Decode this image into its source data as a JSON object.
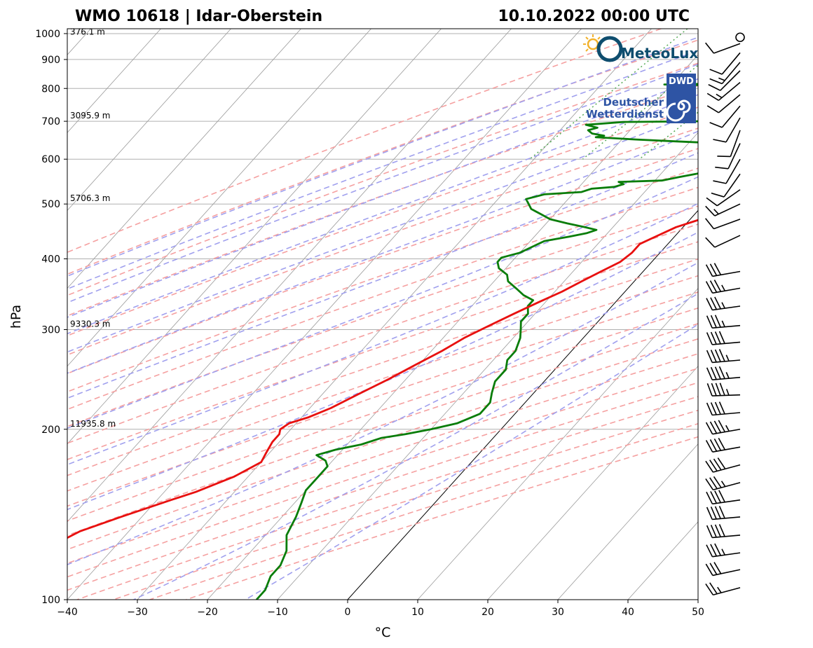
{
  "title_left": "WMO 10618 | Idar-Oberstein",
  "title_right": "10.10.2022 00:00 UTC",
  "logos": {
    "meteolux": "MeteoLux",
    "dwd_badge": "DWD",
    "dwd_line1": "Deutscher",
    "dwd_line2": "Wetterdienst"
  },
  "colors": {
    "temperature": "#e8100f",
    "dewpoint": "#0a7d0a",
    "dry_adiabat": "#f5a0a0",
    "moist_adiabat": "#a0a0ee",
    "mixing_ratio": "#55aa55"
  },
  "chart_data": {
    "type": "skew-T log-P",
    "xlabel": "°C",
    "ylabel": "hPa",
    "xlim": [
      -40,
      50
    ],
    "ylim": [
      1020,
      100
    ],
    "x_ticks": [
      -40,
      -30,
      -20,
      -10,
      0,
      10,
      20,
      30,
      40,
      50
    ],
    "x_tick_labels": [
      "−40",
      "−30",
      "−20",
      "−10",
      "0",
      "10",
      "20",
      "30",
      "40",
      "50"
    ],
    "y_ticks": [
      1000,
      900,
      800,
      700,
      600,
      500,
      400,
      300,
      200,
      100
    ],
    "y_tick_labels": [
      "1000",
      "900",
      "800",
      "700",
      "600",
      "500",
      "400",
      "300",
      "200",
      "100"
    ],
    "height_labels": [
      {
        "p": 985,
        "label": "376.1 m"
      },
      {
        "p": 700,
        "label": "3095.9 m"
      },
      {
        "p": 500,
        "label": "5706.3 m"
      },
      {
        "p": 300,
        "label": "9330.3 m"
      },
      {
        "p": 200,
        "label": "11935.8 m"
      }
    ],
    "temperature_profile": [
      [
        970,
        6
      ],
      [
        965,
        10
      ],
      [
        958,
        13
      ],
      [
        950,
        14.5
      ],
      [
        935,
        15
      ],
      [
        920,
        15.5
      ],
      [
        900,
        15
      ],
      [
        880,
        14.5
      ],
      [
        860,
        15.5
      ],
      [
        845,
        16
      ],
      [
        830,
        17.5
      ],
      [
        810,
        18
      ],
      [
        800,
        17
      ],
      [
        780,
        15.5
      ],
      [
        760,
        15
      ],
      [
        740,
        14
      ],
      [
        720,
        13.5
      ],
      [
        700,
        13
      ],
      [
        685,
        12.5
      ],
      [
        670,
        11.5
      ],
      [
        650,
        10
      ],
      [
        630,
        9.5
      ],
      [
        610,
        8.5
      ],
      [
        590,
        8
      ],
      [
        570,
        7.5
      ],
      [
        550,
        6.5
      ],
      [
        530,
        6
      ],
      [
        510,
        5.5
      ],
      [
        500,
        4.5
      ],
      [
        485,
        3
      ],
      [
        470,
        1.5
      ],
      [
        455,
        -1
      ],
      [
        440,
        -2.5
      ],
      [
        425,
        -4
      ],
      [
        410,
        -4
      ],
      [
        395,
        -4.5
      ],
      [
        380,
        -6
      ],
      [
        365,
        -7.5
      ],
      [
        350,
        -9
      ],
      [
        335,
        -11
      ],
      [
        320,
        -13
      ],
      [
        305,
        -15
      ],
      [
        290,
        -17
      ],
      [
        275,
        -18.5
      ],
      [
        260,
        -20.5
      ],
      [
        245,
        -22.5
      ],
      [
        230,
        -25
      ],
      [
        218,
        -27
      ],
      [
        210,
        -29
      ],
      [
        205,
        -31
      ],
      [
        200,
        -31.5
      ],
      [
        196,
        -31
      ],
      [
        190,
        -31
      ],
      [
        182,
        -30.5
      ],
      [
        175,
        -30
      ],
      [
        165,
        -32
      ],
      [
        155,
        -35.5
      ],
      [
        150,
        -38
      ],
      [
        140,
        -43
      ],
      [
        132,
        -47
      ],
      [
        125,
        -49
      ],
      [
        118,
        -52
      ],
      [
        112,
        -55
      ],
      [
        106,
        -57
      ],
      [
        100,
        -58
      ]
    ],
    "dewpoint_profile": [
      [
        970,
        5
      ],
      [
        960,
        6.5
      ],
      [
        950,
        8
      ],
      [
        930,
        9.5
      ],
      [
        915,
        10
      ],
      [
        900,
        10.5
      ],
      [
        890,
        9
      ],
      [
        875,
        10
      ],
      [
        865,
        9
      ],
      [
        857,
        7
      ],
      [
        850,
        4
      ],
      [
        848,
        -7
      ],
      [
        846,
        -9
      ],
      [
        845,
        -14
      ],
      [
        835,
        -7
      ],
      [
        825,
        -13
      ],
      [
        818,
        -7
      ],
      [
        813,
        -21
      ],
      [
        808,
        -8
      ],
      [
        804,
        3
      ],
      [
        800,
        4.5
      ],
      [
        790,
        4
      ],
      [
        780,
        3
      ],
      [
        775,
        -5
      ],
      [
        770,
        -10
      ],
      [
        765,
        -3
      ],
      [
        760,
        2
      ],
      [
        753,
        4
      ],
      [
        745,
        6
      ],
      [
        735,
        5
      ],
      [
        725,
        3
      ],
      [
        710,
        -3
      ],
      [
        700,
        -11
      ],
      [
        698,
        -22
      ],
      [
        690,
        -27
      ],
      [
        682,
        -25
      ],
      [
        675,
        -26
      ],
      [
        666,
        -25
      ],
      [
        660,
        -23
      ],
      [
        656,
        -24
      ],
      [
        650,
        -18
      ],
      [
        645,
        -12
      ],
      [
        638,
        -3
      ],
      [
        632,
        5
      ],
      [
        628,
        5
      ],
      [
        620,
        5
      ],
      [
        612,
        3
      ],
      [
        605,
        1.5
      ],
      [
        595,
        0.5
      ],
      [
        585,
        -1
      ],
      [
        575,
        -3
      ],
      [
        565,
        -5
      ],
      [
        558,
        -7
      ],
      [
        550,
        -9
      ],
      [
        547,
        -15
      ],
      [
        542,
        -14
      ],
      [
        536,
        -15
      ],
      [
        532,
        -18
      ],
      [
        525,
        -19
      ],
      [
        520,
        -24
      ],
      [
        515,
        -25
      ],
      [
        510,
        -26
      ],
      [
        500,
        -25
      ],
      [
        490,
        -24
      ],
      [
        480,
        -22
      ],
      [
        470,
        -20
      ],
      [
        462,
        -17
      ],
      [
        455,
        -14
      ],
      [
        450,
        -12
      ],
      [
        444,
        -13
      ],
      [
        438,
        -15
      ],
      [
        430,
        -18
      ],
      [
        420,
        -19
      ],
      [
        410,
        -20
      ],
      [
        402,
        -22
      ],
      [
        395,
        -22
      ],
      [
        385,
        -21
      ],
      [
        375,
        -19
      ],
      [
        365,
        -18
      ],
      [
        355,
        -16
      ],
      [
        345,
        -14
      ],
      [
        338,
        -12
      ],
      [
        330,
        -12
      ],
      [
        320,
        -11
      ],
      [
        310,
        -11
      ],
      [
        300,
        -10
      ],
      [
        290,
        -9
      ],
      [
        275,
        -8
      ],
      [
        265,
        -8
      ],
      [
        255,
        -7
      ],
      [
        243,
        -7
      ],
      [
        232,
        -6
      ],
      [
        223,
        -5
      ],
      [
        213,
        -5
      ],
      [
        205,
        -7
      ],
      [
        200,
        -10
      ],
      [
        196,
        -13
      ],
      [
        193,
        -16
      ],
      [
        188,
        -18
      ],
      [
        184,
        -21
      ],
      [
        180,
        -23
      ],
      [
        176,
        -21
      ],
      [
        172,
        -20
      ],
      [
        165,
        -20
      ],
      [
        156,
        -20
      ],
      [
        148,
        -19
      ],
      [
        140,
        -18
      ],
      [
        130,
        -17
      ],
      [
        122,
        -15
      ],
      [
        115,
        -14
      ],
      [
        110,
        -14
      ],
      [
        104,
        -13
      ],
      [
        100,
        -13
      ]
    ],
    "wind_barbs": [
      {
        "p": 985,
        "dir": 0,
        "speed": 0
      },
      {
        "p": 960,
        "dir": 250,
        "speed": 10
      },
      {
        "p": 925,
        "dir": 220,
        "speed": 10
      },
      {
        "p": 890,
        "dir": 220,
        "speed": 15
      },
      {
        "p": 860,
        "dir": 225,
        "speed": 10
      },
      {
        "p": 820,
        "dir": 230,
        "speed": 15
      },
      {
        "p": 780,
        "dir": 230,
        "speed": 10
      },
      {
        "p": 745,
        "dir": 220,
        "speed": 10
      },
      {
        "p": 710,
        "dir": 210,
        "speed": 10
      },
      {
        "p": 675,
        "dir": 200,
        "speed": 10
      },
      {
        "p": 640,
        "dir": 205,
        "speed": 10
      },
      {
        "p": 600,
        "dir": 210,
        "speed": 10
      },
      {
        "p": 565,
        "dir": 215,
        "speed": 10
      },
      {
        "p": 530,
        "dir": 235,
        "speed": 10
      },
      {
        "p": 500,
        "dir": 245,
        "speed": 15
      },
      {
        "p": 470,
        "dir": 250,
        "speed": 10
      },
      {
        "p": 440,
        "dir": 245,
        "speed": 10
      },
      {
        "p": 380,
        "dir": 260,
        "speed": 30
      },
      {
        "p": 355,
        "dir": 260,
        "speed": 35
      },
      {
        "p": 330,
        "dir": 262,
        "speed": 35
      },
      {
        "p": 305,
        "dir": 265,
        "speed": 35
      },
      {
        "p": 285,
        "dir": 265,
        "speed": 40
      },
      {
        "p": 265,
        "dir": 265,
        "speed": 45
      },
      {
        "p": 247,
        "dir": 265,
        "speed": 45
      },
      {
        "p": 230,
        "dir": 268,
        "speed": 45
      },
      {
        "p": 214,
        "dir": 265,
        "speed": 40
      },
      {
        "p": 200,
        "dir": 260,
        "speed": 45
      },
      {
        "p": 186,
        "dir": 260,
        "speed": 40
      },
      {
        "p": 173,
        "dir": 255,
        "speed": 40
      },
      {
        "p": 161,
        "dir": 255,
        "speed": 35
      },
      {
        "p": 150,
        "dir": 262,
        "speed": 40
      },
      {
        "p": 140,
        "dir": 265,
        "speed": 40
      },
      {
        "p": 130,
        "dir": 265,
        "speed": 40
      },
      {
        "p": 121,
        "dir": 262,
        "speed": 35
      },
      {
        "p": 113,
        "dir": 258,
        "speed": 30
      },
      {
        "p": 105,
        "dir": 255,
        "speed": 25
      }
    ]
  }
}
